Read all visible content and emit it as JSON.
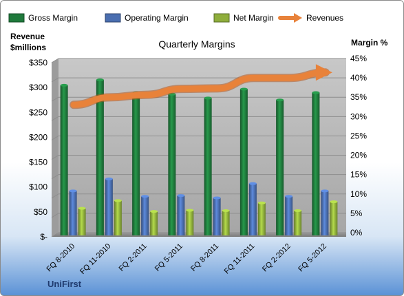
{
  "chart_data": {
    "type": "bar",
    "title": "Quarterly Margins",
    "left_axis_title_line1": "Revenue",
    "left_axis_title_line2": "$millions",
    "right_axis_title": "Margin %",
    "categories": [
      "FQ 8-2010",
      "FQ 11-2010",
      "FQ 2-2011",
      "FQ 5-2011",
      "FQ 8-2011",
      "FQ 11-2011",
      "FQ 2-2012",
      "FQ 5-2012"
    ],
    "left_ylim": [
      0,
      350
    ],
    "right_ylim": [
      0,
      45
    ],
    "left_ticks": [
      "$-",
      "$50",
      "$100",
      "$150",
      "$200",
      "$250",
      "$300",
      "$350"
    ],
    "right_ticks": [
      "0%",
      "5%",
      "10%",
      "15%",
      "20%",
      "25%",
      "30%",
      "35%",
      "40%",
      "45%"
    ],
    "series": [
      {
        "name": "Gross Margin",
        "kind": "bar",
        "axis": "right",
        "color": "#1f7a3c",
        "values": [
          38.8,
          40.2,
          36.8,
          36.5,
          35.5,
          37.8,
          35.0,
          36.9
        ]
      },
      {
        "name": "Operating Margin",
        "kind": "bar",
        "axis": "right",
        "color": "#4a6eb0",
        "values": [
          11.5,
          14.6,
          10.1,
          10.3,
          9.7,
          13.4,
          10.1,
          11.5
        ]
      },
      {
        "name": "Net Margin",
        "kind": "bar",
        "axis": "right",
        "color": "#8fae3c",
        "values": [
          7.0,
          9.0,
          6.2,
          6.5,
          6.4,
          8.4,
          6.4,
          8.7
        ]
      },
      {
        "name": "Revenues",
        "kind": "line",
        "axis": "left",
        "color": "#e8823a",
        "values": [
          257,
          272,
          277,
          289,
          290,
          311,
          311,
          322
        ]
      }
    ],
    "grid": true,
    "legend_position": "top"
  },
  "brand": "UniFirst"
}
